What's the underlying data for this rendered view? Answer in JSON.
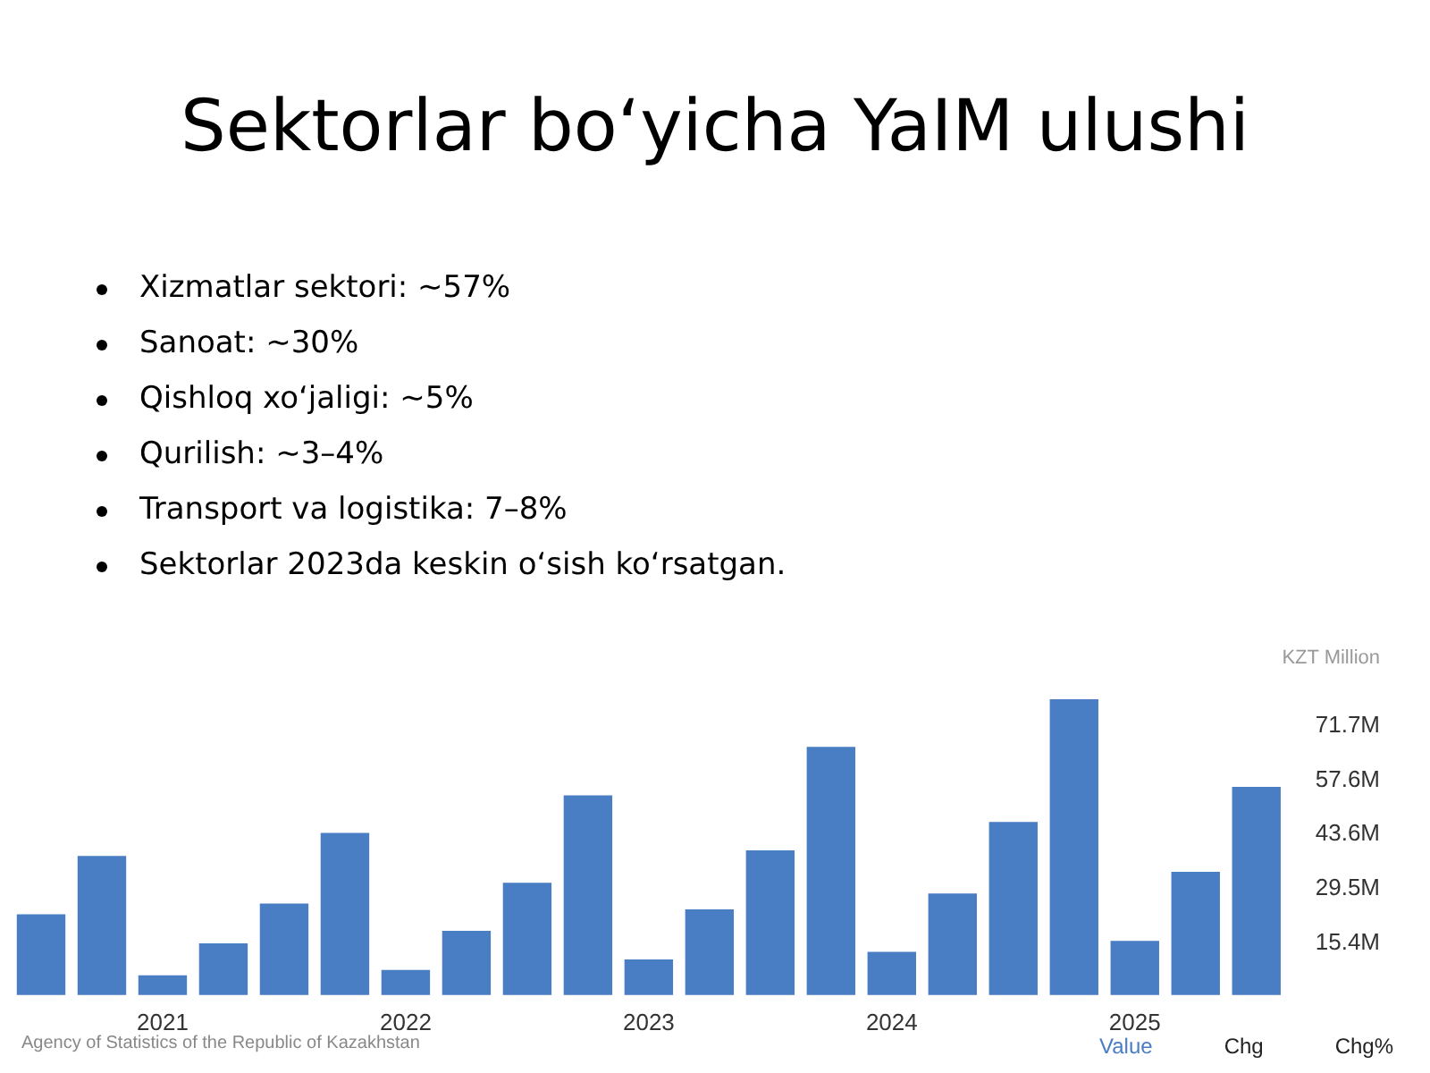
{
  "chart_data": {
    "type": "bar",
    "title": "Sektorlar bo‘yicha YaIM ulushi",
    "annotations": [
      "Xizmatlar sektori: ~57%",
      "Sanoat: ~30%",
      "Qishloq xo‘jaligi: ~5%",
      "Qurilish: ~3–4%",
      "Transport va logistika: 7–8%",
      "Sektorlar 2023da keskin o‘sish ko‘rsatgan.",
      "Agency of Statistics of the Republic of Kazakhstan",
      "Value",
      "Chg",
      "Chg%"
    ],
    "ylabel": "KZT Million",
    "categories": [
      null,
      null,
      "2021",
      null,
      null,
      null,
      "2022",
      null,
      null,
      null,
      "2023",
      null,
      null,
      null,
      "2024",
      null,
      null,
      null,
      "2025",
      null,
      null
    ],
    "values": [
      22.9,
      38.0,
      7.1,
      15.4,
      25.7,
      44.0,
      8.5,
      18.6,
      31.1,
      53.7,
      11.2,
      24.2,
      39.5,
      66.3,
      13.2,
      28.3,
      46.8,
      78.6,
      16.0,
      33.9,
      55.9
    ],
    "color": "#4a7ec4",
    "ylim": [
      2,
      80
    ],
    "yticks": [
      {
        "value": 15.4,
        "label": "15.4M"
      },
      {
        "value": 29.5,
        "label": "29.5M"
      },
      {
        "value": 43.6,
        "label": "43.6M"
      },
      {
        "value": 57.6,
        "label": "57.6M"
      },
      {
        "value": 71.7,
        "label": "71.7M"
      }
    ],
    "grid": false,
    "legend": false
  }
}
